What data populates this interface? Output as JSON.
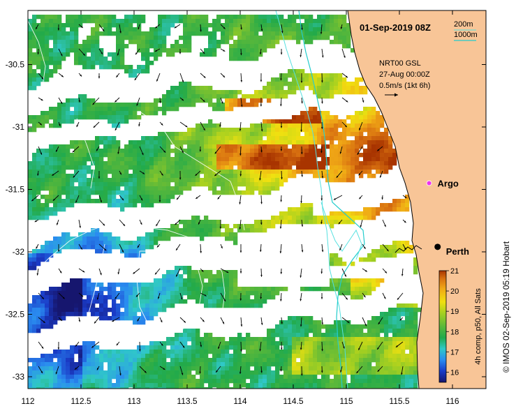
{
  "map": {
    "title": "01-Sep-2019 08Z",
    "model": "NRT00 GSL",
    "model_date": "27-Aug 00:00Z",
    "vector_scale": "0.5m/s (1kt 6h)",
    "isobath_200": "200m",
    "isobath_1000": "1000m",
    "colorbar_label": "4h comp, p50, All Sats",
    "colorbar_ticks": [
      "21",
      "20",
      "19",
      "18",
      "17",
      "16"
    ],
    "credit": "© IMOS 02-Sep-2019 05:19 Hobart",
    "places": [
      {
        "name": "Argo",
        "lon": 115.78,
        "lat": -31.45,
        "color": "#ee33ee"
      },
      {
        "name": "Perth",
        "lon": 115.86,
        "lat": -31.96,
        "color": "#000000"
      }
    ],
    "x_ticks": [
      "112",
      "112.5",
      "113",
      "113.5",
      "114",
      "114.5",
      "115",
      "115.5",
      "116"
    ],
    "y_ticks": [
      "-30.5",
      "-31",
      "-31.5",
      "-32",
      "-32.5",
      "-33"
    ],
    "extent": {
      "lon_min": 112,
      "lon_max": 116.3,
      "lat_min": -33.1,
      "lat_max": -30.05
    },
    "colors": {
      "land": "#f8c597",
      "isobath_200": "#55e0e0",
      "isobath_1000": "#22cccc",
      "sst_scale": [
        "#16166e",
        "#1a3cc8",
        "#2a8cf0",
        "#30c8c8",
        "#22aa4a",
        "#5ab83a",
        "#a6d020",
        "#f0e010",
        "#f0a816",
        "#d87010",
        "#a83400"
      ]
    },
    "sst_range": [
      15.5,
      21
    ]
  }
}
